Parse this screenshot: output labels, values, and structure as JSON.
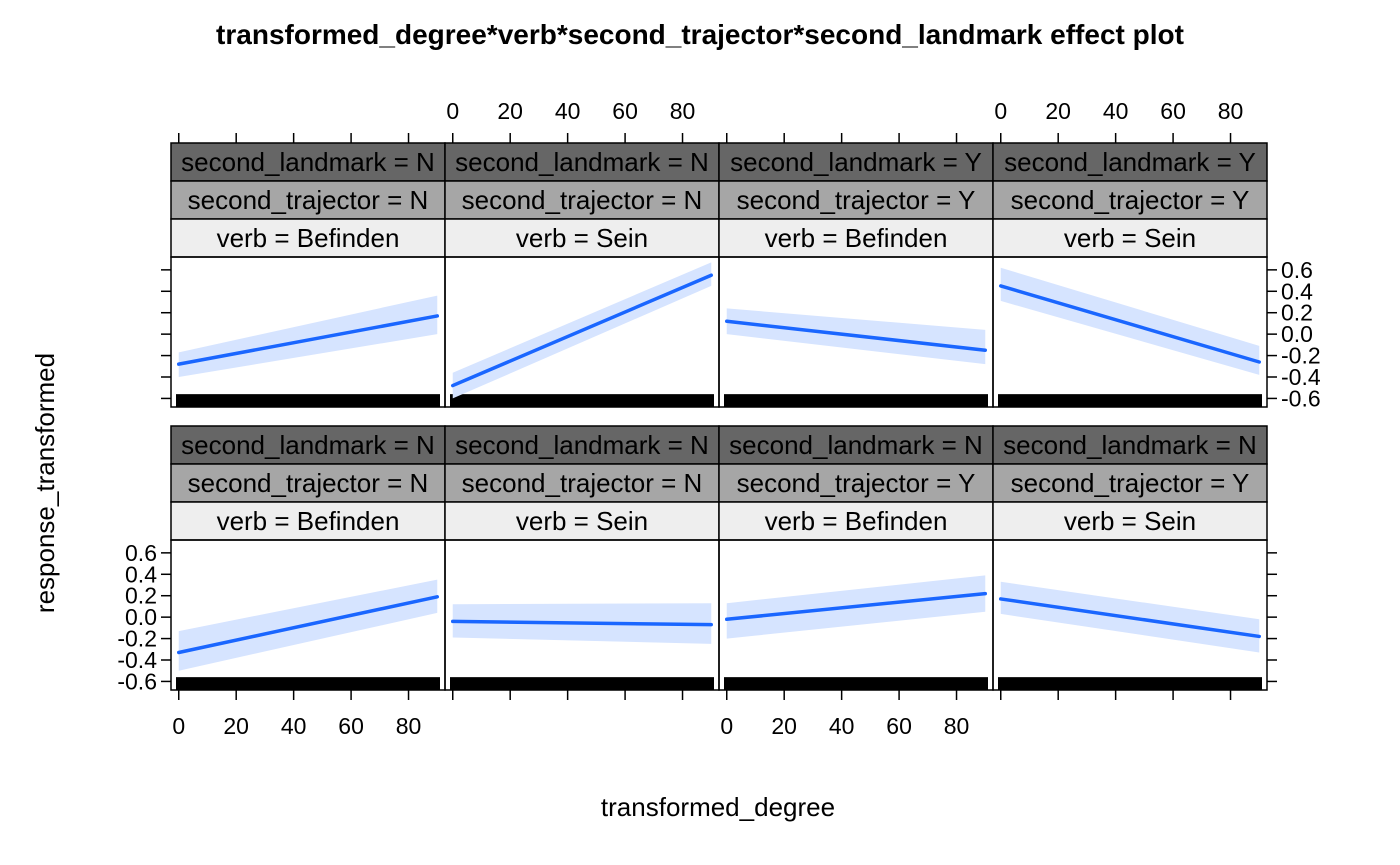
{
  "chart_data": {
    "type": "line",
    "title": "transformed_degree*verb*second_trajector*second_landmark effect plot",
    "xlabel": "transformed_degree",
    "ylabel": "response_transformed",
    "xlim": [
      -2,
      92
    ],
    "ylim": [
      -0.68,
      0.72
    ],
    "x_ticks": [
      0,
      20,
      40,
      60,
      80
    ],
    "x_tick_labels": [
      "0",
      "20",
      "40",
      "60",
      "80"
    ],
    "y_ticks": [
      -0.6,
      -0.4,
      -0.2,
      0.0,
      0.2,
      0.4,
      0.6
    ],
    "y_tick_labels": [
      "-0.6",
      "-0.4",
      "-0.2",
      "0.0",
      "0.2",
      "0.4",
      "0.6"
    ],
    "colors": {
      "line": "#1a66ff",
      "band": "#d6e4ff",
      "rug": "#000000",
      "strip_landmark": "#666666",
      "strip_trajector": "#a6a6a6",
      "strip_verb": "#eeeeee"
    },
    "panels": [
      {
        "row": 0,
        "col": 0,
        "strip_landmark": "second_landmark = N",
        "strip_trajector": "second_trajector = N",
        "strip_verb": "verb = Befinden",
        "x": [
          0,
          90
        ],
        "y": [
          -0.28,
          0.17
        ],
        "lower": [
          -0.4,
          0.0
        ],
        "upper": [
          -0.17,
          0.36
        ]
      },
      {
        "row": 0,
        "col": 1,
        "strip_landmark": "second_landmark = N",
        "strip_trajector": "second_trajector = N",
        "strip_verb": "verb = Sein",
        "x": [
          0,
          90
        ],
        "y": [
          -0.48,
          0.55
        ],
        "lower": [
          -0.6,
          0.45
        ],
        "upper": [
          -0.36,
          0.67
        ]
      },
      {
        "row": 0,
        "col": 2,
        "strip_landmark": "second_landmark = Y",
        "strip_trajector": "second_trajector = Y",
        "strip_verb": "verb = Befinden",
        "x": [
          0,
          90
        ],
        "y": [
          0.12,
          -0.15
        ],
        "lower": [
          0.0,
          -0.28
        ],
        "upper": [
          0.24,
          0.04
        ]
      },
      {
        "row": 0,
        "col": 3,
        "strip_landmark": "second_landmark = Y",
        "strip_trajector": "second_trajector = Y",
        "strip_verb": "verb = Sein",
        "x": [
          0,
          90
        ],
        "y": [
          0.45,
          -0.26
        ],
        "lower": [
          0.31,
          -0.38
        ],
        "upper": [
          0.62,
          -0.11
        ]
      },
      {
        "row": 1,
        "col": 0,
        "strip_landmark": "second_landmark = N",
        "strip_trajector": "second_trajector = N",
        "strip_verb": "verb = Befinden",
        "x": [
          0,
          90
        ],
        "y": [
          -0.33,
          0.19
        ],
        "lower": [
          -0.5,
          0.04
        ],
        "upper": [
          -0.13,
          0.35
        ]
      },
      {
        "row": 1,
        "col": 1,
        "strip_landmark": "second_landmark = N",
        "strip_trajector": "second_trajector = N",
        "strip_verb": "verb = Sein",
        "x": [
          0,
          90
        ],
        "y": [
          -0.04,
          -0.07
        ],
        "lower": [
          -0.19,
          -0.25
        ],
        "upper": [
          0.12,
          0.13
        ]
      },
      {
        "row": 1,
        "col": 2,
        "strip_landmark": "second_landmark = N",
        "strip_trajector": "second_trajector = Y",
        "strip_verb": "verb = Befinden",
        "x": [
          0,
          90
        ],
        "y": [
          -0.02,
          0.22
        ],
        "lower": [
          -0.2,
          0.05
        ],
        "upper": [
          0.13,
          0.39
        ]
      },
      {
        "row": 1,
        "col": 3,
        "strip_landmark": "second_landmark = N",
        "strip_trajector": "second_trajector = Y",
        "strip_verb": "verb = Sein",
        "x": [
          0,
          90
        ],
        "y": [
          0.17,
          -0.18
        ],
        "lower": [
          0.03,
          -0.33
        ],
        "upper": [
          0.33,
          -0.02
        ]
      }
    ]
  }
}
